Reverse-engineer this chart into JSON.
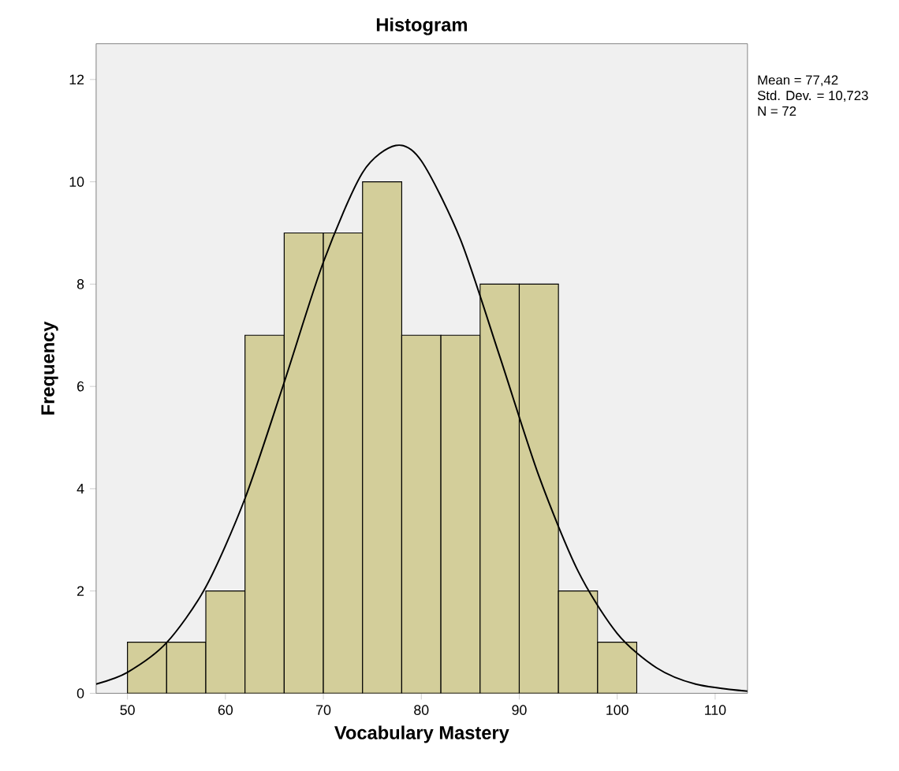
{
  "chart_data": {
    "type": "histogram",
    "title": "Histogram",
    "xlabel": "Vocabulary Mastery",
    "ylabel": "Frequency",
    "bins": [
      50,
      54,
      58,
      62,
      66,
      70,
      74,
      78,
      82,
      86,
      90,
      94,
      98,
      102
    ],
    "values": [
      1,
      1,
      2,
      7,
      9,
      9,
      10,
      7,
      7,
      8,
      8,
      2,
      1
    ],
    "color": "#d3ce9a",
    "series": [
      {
        "type": "line",
        "color": "#000000",
        "x": [
          46.8,
          50,
          54,
          58,
          62,
          66,
          70,
          74,
          77.4,
          80,
          84,
          88,
          92,
          96,
          100,
          104,
          108,
          113.3
        ],
        "values": [
          0.18,
          0.41,
          0.99,
          2.08,
          3.81,
          6.08,
          8.43,
          10.18,
          10.71,
          10.41,
          8.87,
          6.59,
          4.25,
          2.39,
          1.17,
          0.5,
          0.18,
          0.04
        ]
      }
    ],
    "xlim": [
      46.8,
      113.3
    ],
    "ylim": [
      0,
      12.7
    ],
    "xticks": [
      50,
      60,
      70,
      80,
      90,
      100,
      110
    ],
    "yticks": [
      0,
      2,
      4,
      6,
      8,
      10,
      12
    ],
    "grid": false,
    "annotations": [
      "Mean = 77,42",
      "Std. Dev. = 10,723",
      "N = 72"
    ]
  }
}
